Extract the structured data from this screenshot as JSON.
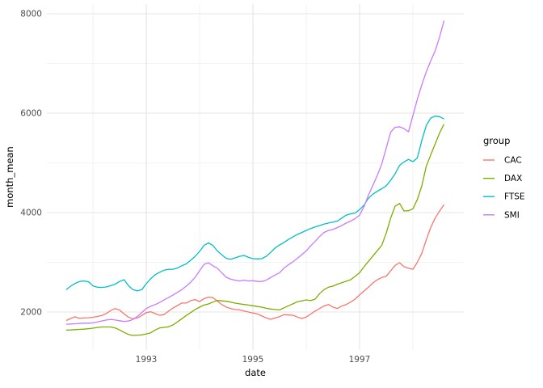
{
  "figure": {
    "background": "#FFFFFF",
    "grid_major_color": "#E4E4E4",
    "grid_minor_color": "#EFEFEF",
    "tick_label_color": "#4D4D4D",
    "x_axis": {
      "title": "date",
      "major_ticks": [
        {
          "value": 1993,
          "label": "1993"
        },
        {
          "value": 1995,
          "label": "1995"
        },
        {
          "value": 1997,
          "label": "1997"
        }
      ],
      "minor_ticks": [
        1992,
        1994,
        1996,
        1998
      ]
    },
    "y_axis": {
      "title": "month_mean",
      "major_ticks": [
        {
          "value": 2000,
          "label": "2000"
        },
        {
          "value": 4000,
          "label": "4000"
        },
        {
          "value": 6000,
          "label": "6000"
        },
        {
          "value": 8000,
          "label": "8000"
        }
      ],
      "minor_ticks": [
        3000,
        5000,
        7000
      ]
    },
    "legend": {
      "title": "group",
      "entries": [
        {
          "label": "CAC",
          "color": "#F8766D"
        },
        {
          "label": "DAX",
          "color": "#7CAE00"
        },
        {
          "label": "FTSE",
          "color": "#00BFC4"
        },
        {
          "label": "SMI",
          "color": "#C77CFF"
        }
      ]
    }
  },
  "chart_data": {
    "type": "line",
    "title": "",
    "xlabel": "date",
    "ylabel": "month_mean",
    "x_start": "1991-07",
    "x_end": "1998-08",
    "frequency": "monthly",
    "x_start_decimal_year": 1991.5,
    "x_step_years": 0.0833333,
    "n_points": 86,
    "xlim": [
      1991.136,
      1998.955
    ],
    "ylim": [
      1236,
      8195
    ],
    "grid": true,
    "legend_position": "right",
    "series": [
      {
        "name": "CAC",
        "color": "#F8766D",
        "values": [
          1830,
          1870,
          1905,
          1870,
          1880,
          1885,
          1895,
          1910,
          1930,
          1970,
          2030,
          2070,
          2040,
          1962,
          1898,
          1865,
          1880,
          1930,
          1989,
          2005,
          1970,
          1935,
          1946,
          2016,
          2080,
          2130,
          2180,
          2180,
          2230,
          2250,
          2210,
          2270,
          2300,
          2290,
          2220,
          2150,
          2100,
          2070,
          2050,
          2043,
          2020,
          2000,
          1980,
          1962,
          1920,
          1881,
          1854,
          1880,
          1908,
          1946,
          1940,
          1935,
          1900,
          1870,
          1900,
          1960,
          2020,
          2070,
          2120,
          2152,
          2100,
          2070,
          2120,
          2152,
          2200,
          2260,
          2345,
          2423,
          2500,
          2585,
          2650,
          2694,
          2720,
          2830,
          2938,
          2992,
          2911,
          2883,
          2860,
          3000,
          3180,
          3450,
          3700,
          3890,
          4030,
          4160
        ]
      },
      {
        "name": "DAX",
        "color": "#7CAE00",
        "values": [
          1637,
          1640,
          1645,
          1650,
          1655,
          1665,
          1675,
          1690,
          1700,
          1700,
          1700,
          1680,
          1640,
          1590,
          1550,
          1528,
          1535,
          1540,
          1560,
          1583,
          1638,
          1680,
          1691,
          1702,
          1740,
          1800,
          1865,
          1930,
          1989,
          2050,
          2098,
          2140,
          2163,
          2200,
          2233,
          2225,
          2217,
          2200,
          2179,
          2165,
          2152,
          2140,
          2125,
          2110,
          2098,
          2075,
          2060,
          2050,
          2043,
          2085,
          2125,
          2165,
          2206,
          2225,
          2244,
          2230,
          2260,
          2370,
          2450,
          2500,
          2520,
          2560,
          2590,
          2620,
          2650,
          2720,
          2790,
          2911,
          3020,
          3127,
          3235,
          3344,
          3588,
          3890,
          4130,
          4184,
          4033,
          4038,
          4077,
          4265,
          4537,
          4930,
          5160,
          5380,
          5600,
          5780
        ]
      },
      {
        "name": "FTSE",
        "color": "#00BFC4",
        "values": [
          2450,
          2520,
          2575,
          2615,
          2625,
          2610,
          2525,
          2500,
          2495,
          2505,
          2530,
          2560,
          2615,
          2650,
          2530,
          2450,
          2425,
          2450,
          2570,
          2670,
          2750,
          2800,
          2840,
          2858,
          2860,
          2885,
          2930,
          2970,
          3040,
          3120,
          3220,
          3340,
          3390,
          3340,
          3230,
          3150,
          3080,
          3060,
          3090,
          3120,
          3138,
          3100,
          3073,
          3068,
          3073,
          3120,
          3200,
          3290,
          3350,
          3400,
          3460,
          3510,
          3560,
          3600,
          3640,
          3680,
          3710,
          3740,
          3770,
          3790,
          3810,
          3830,
          3890,
          3950,
          3975,
          3990,
          4060,
          4150,
          4290,
          4370,
          4430,
          4480,
          4540,
          4650,
          4780,
          4950,
          5020,
          5070,
          5025,
          5100,
          5450,
          5750,
          5900,
          5940,
          5930,
          5885
        ]
      },
      {
        "name": "SMI",
        "color": "#C77CFF",
        "values": [
          1755,
          1760,
          1765,
          1770,
          1775,
          1775,
          1780,
          1800,
          1820,
          1840,
          1850,
          1840,
          1825,
          1810,
          1820,
          1850,
          1910,
          1990,
          2070,
          2115,
          2150,
          2190,
          2245,
          2290,
          2340,
          2395,
          2450,
          2520,
          2600,
          2700,
          2830,
          2960,
          2990,
          2930,
          2880,
          2790,
          2700,
          2660,
          2640,
          2625,
          2640,
          2625,
          2630,
          2615,
          2615,
          2640,
          2695,
          2745,
          2790,
          2885,
          2950,
          3010,
          3080,
          3155,
          3230,
          3330,
          3420,
          3520,
          3600,
          3640,
          3660,
          3700,
          3740,
          3790,
          3830,
          3880,
          3950,
          4120,
          4350,
          4550,
          4750,
          4980,
          5300,
          5620,
          5715,
          5725,
          5690,
          5625,
          5950,
          6280,
          6570,
          6830,
          7050,
          7250,
          7530,
          7860
        ]
      }
    ]
  }
}
